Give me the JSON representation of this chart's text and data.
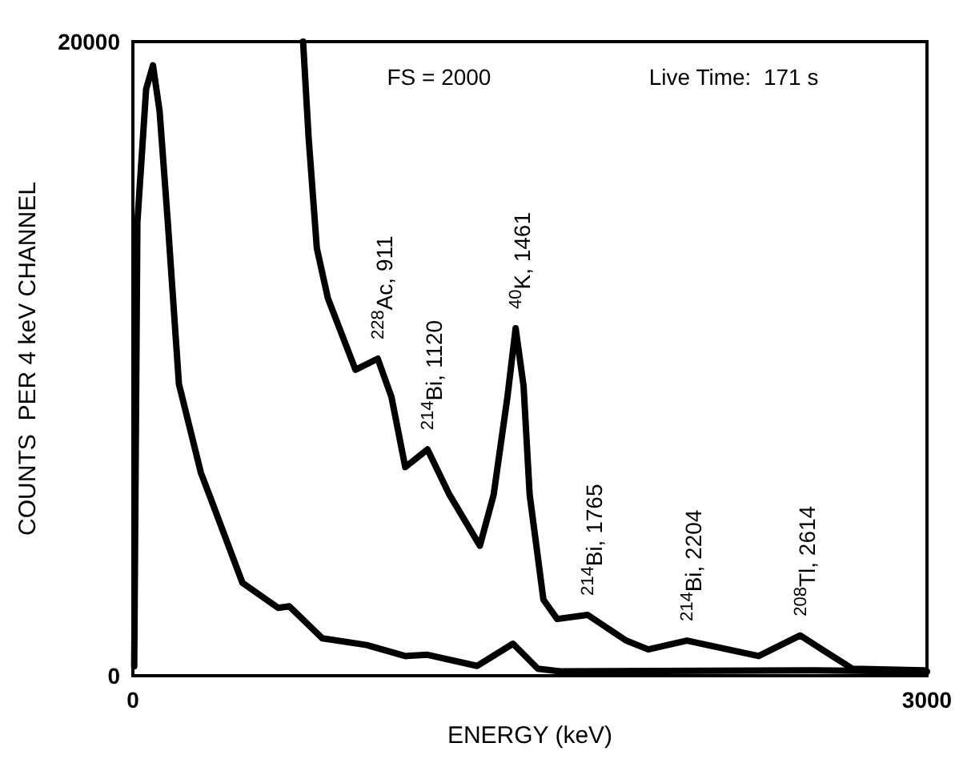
{
  "chart_data": {
    "type": "line",
    "xlabel": "ENERGY (keV)",
    "ylabel": "COUNTS  PER 4 keV CHANNEL",
    "xlim": [
      0,
      3000
    ],
    "xticks": [
      0,
      3000
    ],
    "ylim": [
      0,
      20000
    ],
    "yticks": [
      0,
      20000
    ],
    "marker": "none",
    "line_style": "solid",
    "series": [
      {
        "color": "#000000",
        "x": [
          5,
          17,
          50,
          76,
          101,
          132,
          174,
          257,
          289,
          414,
          549,
          591,
          716,
          883,
          1029,
          1113,
          1301,
          1436,
          1530,
          1614,
          2571,
          3000
        ],
        "values": [
          300,
          14300,
          18500,
          19250,
          17800,
          14300,
          9200,
          6400,
          5700,
          2930,
          2140,
          2190,
          1180,
          970,
          620,
          660,
          310,
          1010,
          220,
          140,
          170,
          130
        ]
      },
      {
        "color": "#000000",
        "x": [
          643,
          664,
          695,
          737,
          841,
          925,
          977,
          1029,
          1113,
          1196,
          1311,
          1363,
          1415,
          1446,
          1476,
          1499,
          1551,
          1603,
          1718,
          1863,
          1947,
          2093,
          2364,
          2521,
          2635,
          2719,
          2989
        ],
        "values": [
          20000,
          16960,
          13480,
          11900,
          9650,
          10000,
          8790,
          6580,
          7140,
          5710,
          4100,
          5710,
          8790,
          10960,
          9140,
          5710,
          2400,
          1790,
          1920,
          1110,
          830,
          1110,
          620,
          1270,
          660,
          220,
          170
        ]
      }
    ],
    "annotations": [
      "FS = 2000",
      "Live Time:  171 s",
      {
        "text": "$^{228}$Ac, 911",
        "x": 925,
        "y": 10000
      },
      {
        "text": "$^{214}$Bi, 1120",
        "x": 1113,
        "y": 7140
      },
      {
        "text": "$^{40}$K, 1461",
        "x": 1446,
        "y": 10960
      },
      {
        "text": "$^{214}$Bi, 1765",
        "x": 1718,
        "y": 1920
      },
      {
        "text": "$^{214}$Bi, 2204",
        "x": 2093,
        "y": 1110
      },
      {
        "text": "$^{208}$Tl, 2614",
        "x": 2521,
        "y": 1270
      }
    ]
  }
}
